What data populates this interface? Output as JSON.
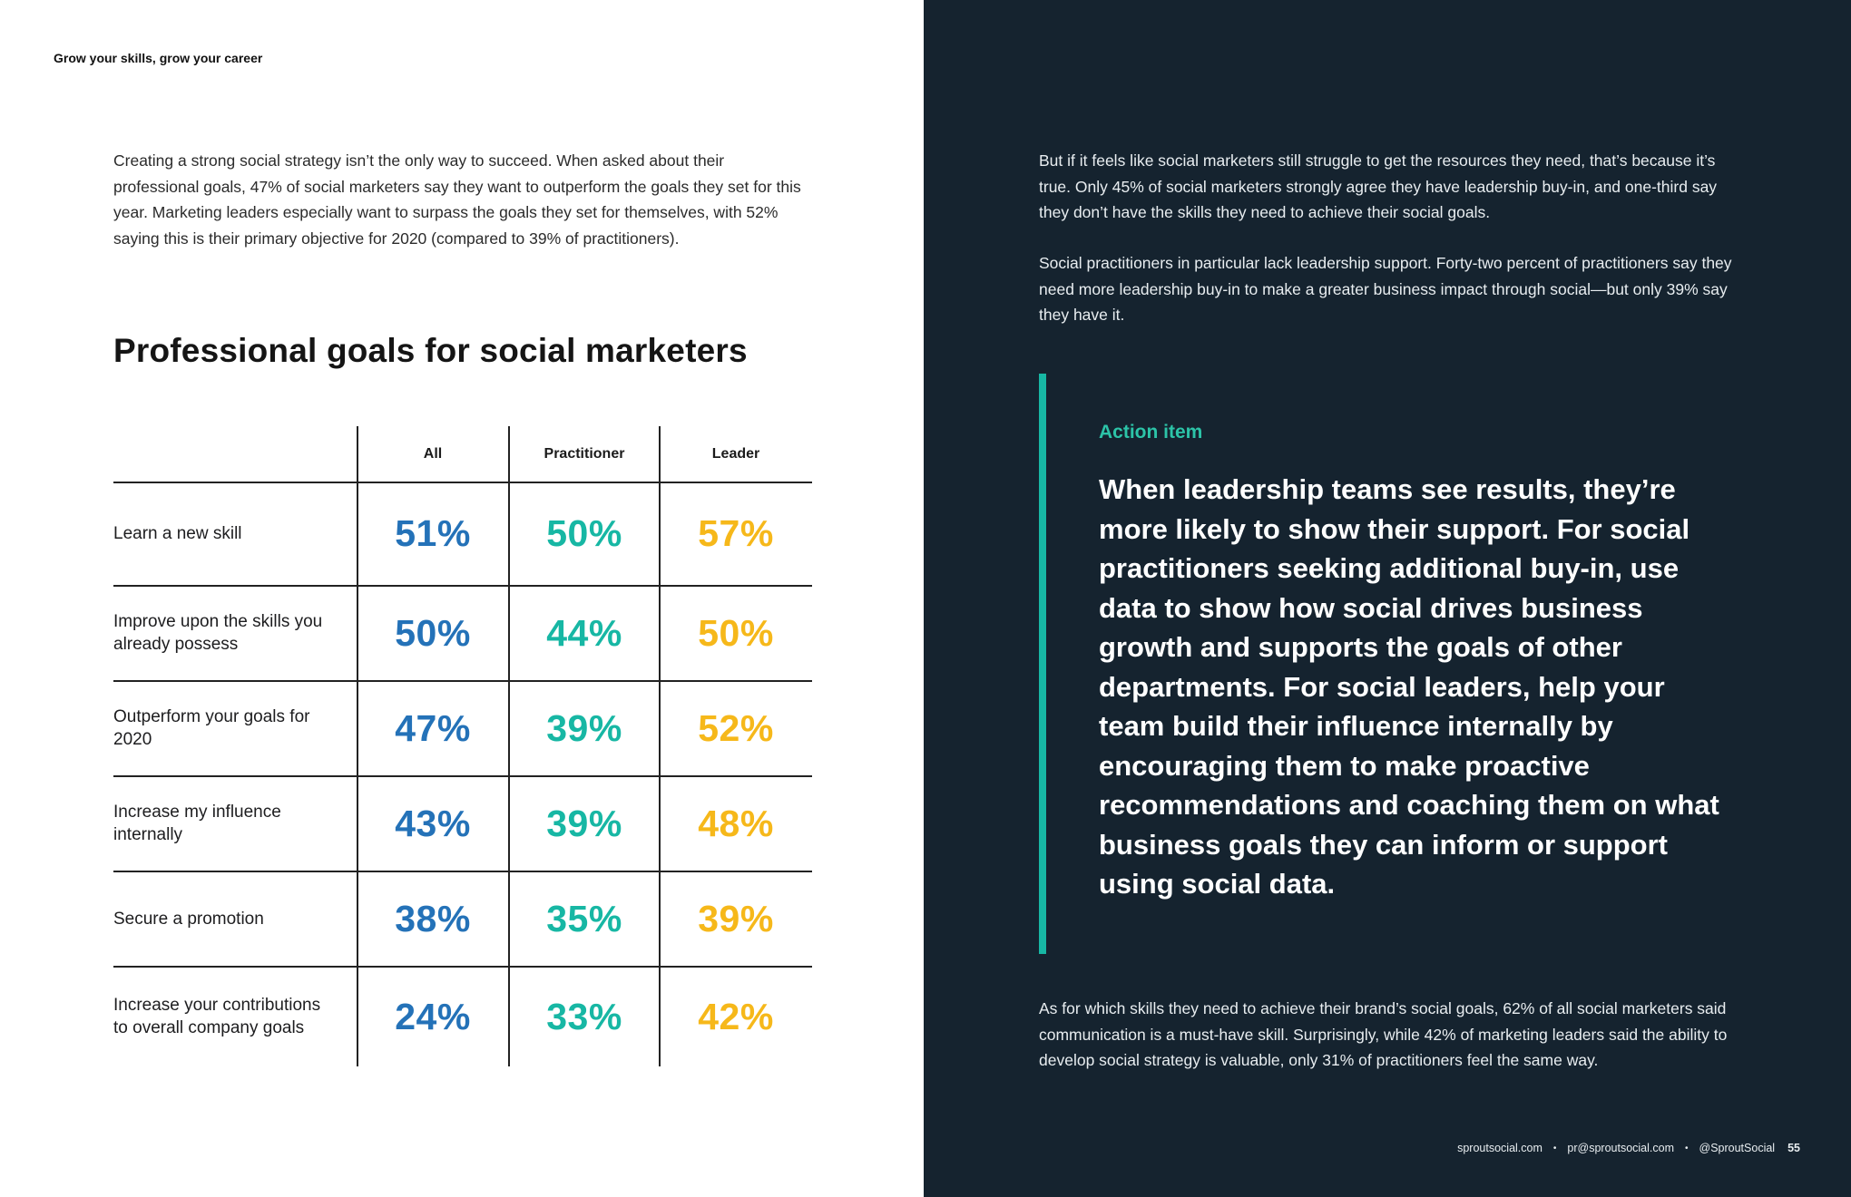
{
  "header": {
    "running_title": "Grow your skills, grow your career"
  },
  "left": {
    "intro": "Creating a strong social strategy isn’t the only way to succeed. When asked about their professional goals, 47% of social marketers say they want to outperform the goals they set for this year. Marketing leaders especially want to surpass the goals they set for themselves, with 52% saying this is their primary objective for 2020 (compared to 39% of practitioners).",
    "chart_title": "Professional goals for social marketers"
  },
  "chart_data": {
    "type": "table",
    "title": "Professional goals for social marketers",
    "columns": [
      "All",
      "Practitioner",
      "Leader"
    ],
    "rows": [
      {
        "label": "Learn a new skill",
        "values": [
          "51%",
          "50%",
          "57%"
        ]
      },
      {
        "label": "Improve upon the skills you already possess",
        "values": [
          "50%",
          "44%",
          "50%"
        ]
      },
      {
        "label": "Outperform your goals for 2020",
        "values": [
          "47%",
          "39%",
          "52%"
        ]
      },
      {
        "label": "Increase my influence internally",
        "values": [
          "43%",
          "39%",
          "48%"
        ]
      },
      {
        "label": "Secure a promotion",
        "values": [
          "38%",
          "35%",
          "39%"
        ]
      },
      {
        "label": "Increase your contributions to overall company goals",
        "values": [
          "24%",
          "33%",
          "42%"
        ]
      }
    ],
    "colors": {
      "All": "#2472b8",
      "Practitioner": "#17b7a4",
      "Leader": "#f6b81a"
    }
  },
  "right": {
    "p1": "But if it feels like social marketers still struggle to get the resources they need, that’s because it’s true. Only 45% of social marketers strongly agree they have leadership buy-in, and one-third say they don’t have the skills they need to achieve their social goals.",
    "p2": "Social practitioners in particular lack leadership support. Forty-two percent of practitioners say they need more leadership buy-in to make a greater business impact through social—but only 39% say they have it.",
    "action_label": "Action item",
    "action_body": "When leadership teams see results, they’re more likely to show their support. For social practitioners seeking additional buy-in, use data to show how social drives business growth and supports the goals of other departments. For social leaders, help your team build their influence internally by encouraging them to make proactive recommendations and coaching them on what business goals they can inform or support using social data.",
    "p3": "As for which skills they need to achieve their brand’s social goals, 62% of all social marketers said communication is a must-have skill. Surprisingly, while 42% of marketing leaders said the ability to develop social strategy is valuable, only 31% of practitioners feel the same way."
  },
  "footer": {
    "site": "sproutsocial.com",
    "email": "pr@sproutsocial.com",
    "handle": "@SproutSocial",
    "separator": "•",
    "page_number": "55"
  }
}
